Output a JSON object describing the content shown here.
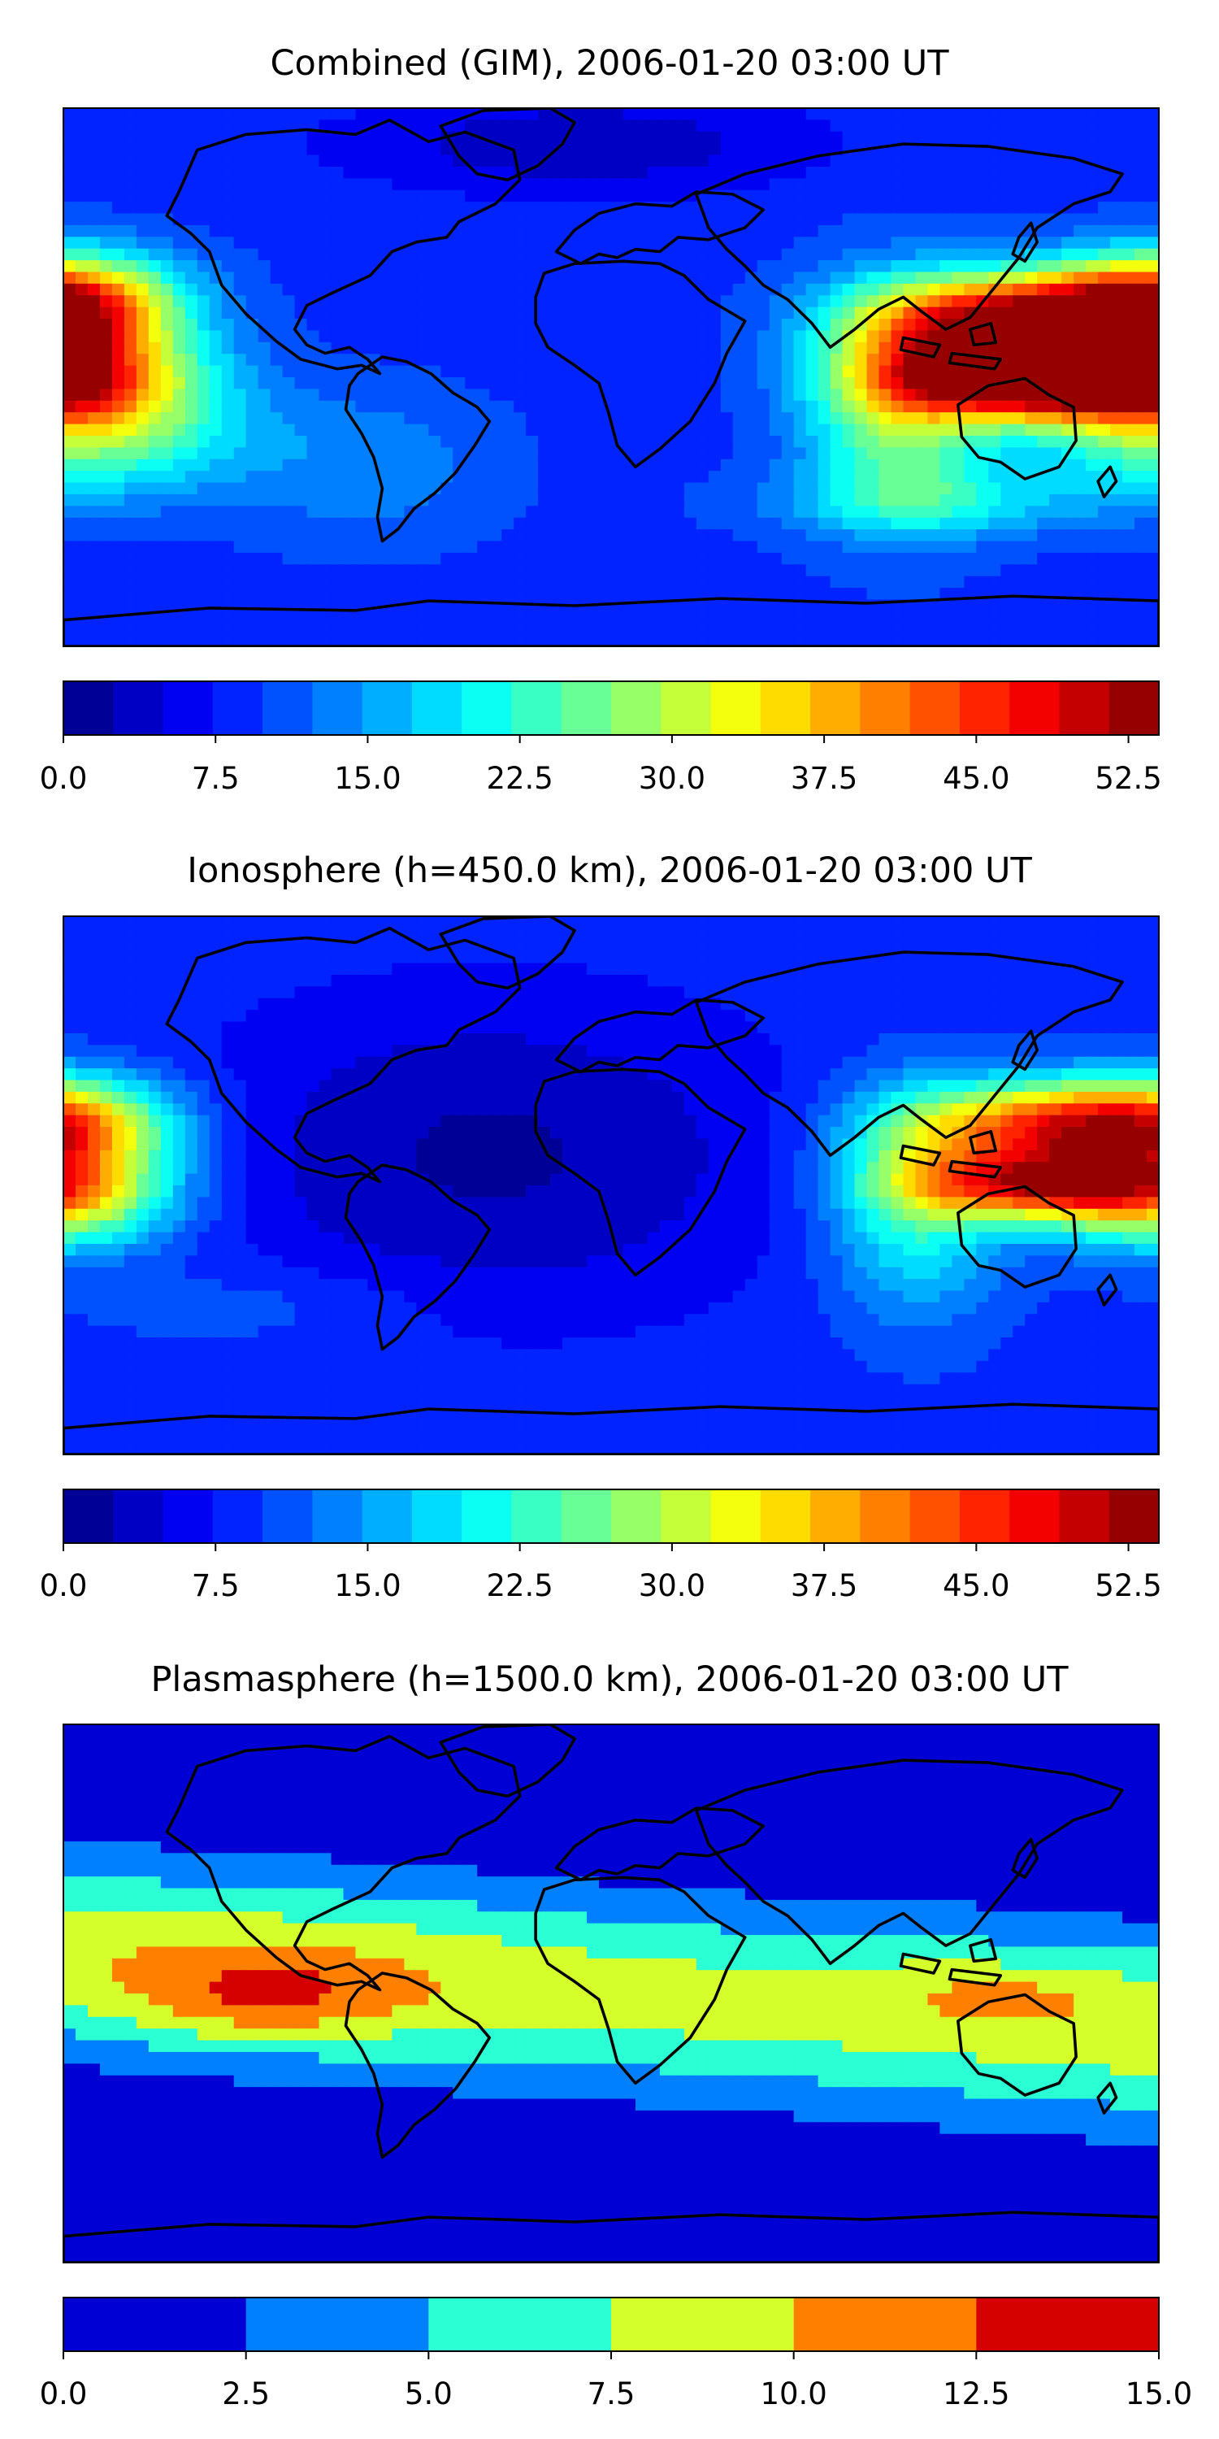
{
  "chart_data": [
    {
      "type": "heatmap",
      "title": "Combined (GIM), 2006-01-20 03:00 UT",
      "projection": "plate-carree",
      "lon_range": [
        -180,
        180
      ],
      "lat_range": [
        -90,
        90
      ],
      "colormap": "jet",
      "color_range": [
        0.0,
        54.0
      ],
      "color_levels": 22,
      "colorbar_ticks": [
        "0.0",
        "7.5",
        "15.0",
        "22.5",
        "30.0",
        "37.5",
        "45.0",
        "52.5"
      ],
      "grid": false,
      "background_level": 9,
      "features": [
        {
          "lon": -180,
          "lat": 25,
          "peak": 34,
          "sx": 26,
          "sy": 12
        },
        {
          "lon": -180,
          "lat": 0,
          "peak": 30,
          "sx": 30,
          "sy": 12
        },
        {
          "lon": -170,
          "lat": -20,
          "peak": 16,
          "sx": 34,
          "sy": 14
        },
        {
          "lon": 95,
          "lat": -8,
          "peak": 20,
          "sx": 22,
          "sy": 26
        },
        {
          "lon": 135,
          "lat": 20,
          "peak": 38,
          "sx": 34,
          "sy": 10
        },
        {
          "lon": 135,
          "lat": 0,
          "peak": 46,
          "sx": 30,
          "sy": 9
        },
        {
          "lon": 110,
          "lat": -42,
          "peak": 8,
          "sx": 40,
          "sy": 8
        },
        {
          "lon": -10,
          "lat": 78,
          "peak": -6,
          "sx": 55,
          "sy": 12
        },
        {
          "lon": -80,
          "lat": -30,
          "peak": 5,
          "sx": 30,
          "sy": 18
        }
      ]
    },
    {
      "type": "heatmap",
      "title": "Ionosphere  (h=450.0 km), 2006-01-20 03:00 UT",
      "projection": "plate-carree",
      "lon_range": [
        -180,
        180
      ],
      "lat_range": [
        -90,
        90
      ],
      "colormap": "jet",
      "color_range": [
        0.0,
        54.0
      ],
      "color_levels": 22,
      "colorbar_ticks": [
        "0.0",
        "7.5",
        "15.0",
        "22.5",
        "30.0",
        "37.5",
        "45.0",
        "52.5"
      ],
      "grid": false,
      "background_level": 9,
      "features": [
        {
          "lon": -40,
          "lat": 10,
          "peak": -7,
          "sx": 70,
          "sy": 38
        },
        {
          "lon": -180,
          "lat": 20,
          "peak": 26,
          "sx": 26,
          "sy": 12
        },
        {
          "lon": -180,
          "lat": -5,
          "peak": 22,
          "sx": 26,
          "sy": 12
        },
        {
          "lon": 100,
          "lat": -5,
          "peak": 14,
          "sx": 20,
          "sy": 26
        },
        {
          "lon": 140,
          "lat": 20,
          "peak": 28,
          "sx": 32,
          "sy": 10
        },
        {
          "lon": 140,
          "lat": 0,
          "peak": 32,
          "sx": 30,
          "sy": 8
        },
        {
          "lon": -120,
          "lat": -40,
          "peak": 3,
          "sx": 40,
          "sy": 10
        }
      ]
    },
    {
      "type": "heatmap",
      "title": "Plasmasphere (h=1500.0 km), 2006-01-20 03:00 UT",
      "projection": "plate-carree",
      "lon_range": [
        -180,
        180
      ],
      "lat_range": [
        -90,
        90
      ],
      "colormap": "jet",
      "color_range": [
        0.0,
        15.0
      ],
      "color_levels": 6,
      "colorbar_ticks": [
        "0.0",
        "2.5",
        "5.0",
        "7.5",
        "10.0",
        "12.5",
        "15.0"
      ],
      "grid": false,
      "band": {
        "center_lat_at_lon0": 0,
        "tilt_deg_per_deg": -0.08,
        "peak": 8.4,
        "width": 33
      },
      "features": [
        {
          "lon": -115,
          "lat": -2,
          "peak": 4.2,
          "sx": 30,
          "sy": 10
        },
        {
          "lon": 130,
          "lat": 0,
          "peak": 2.8,
          "sx": 28,
          "sy": 8
        },
        {
          "lon": -110,
          "lat": 5,
          "peak": 1.6,
          "sx": 60,
          "sy": 20
        },
        {
          "lon": 95,
          "lat": 20,
          "peak": 0.8,
          "sx": 25,
          "sy": 10
        }
      ]
    }
  ],
  "colors": {
    "land_outline": "#000000",
    "frame": "#000000"
  }
}
